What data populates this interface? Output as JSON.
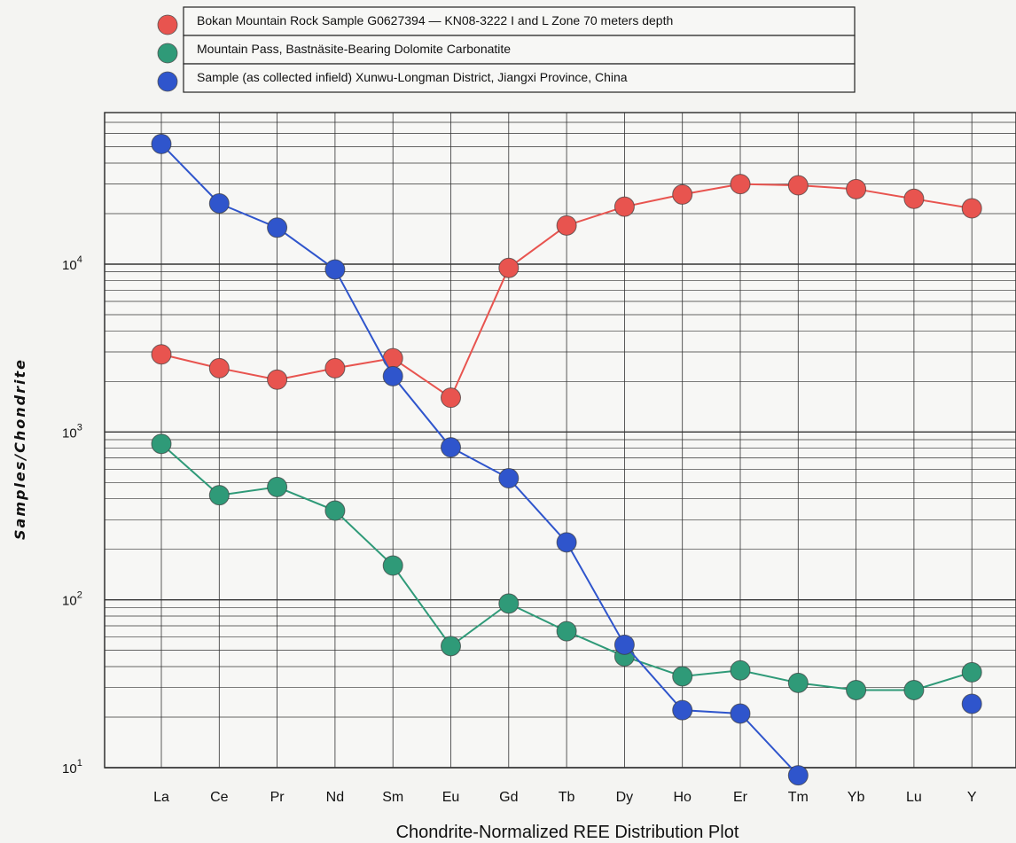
{
  "chart_data": {
    "type": "line",
    "xlabel": "Chondrite-Normalized REE Distribution Plot",
    "ylabel": "Samples/Chondrite",
    "yscale": "log",
    "ylim": [
      10,
      80000
    ],
    "y_tick_labels": [
      {
        "value": 10,
        "base": "10",
        "exp": "1"
      },
      {
        "value": 100,
        "base": "10",
        "exp": "2"
      },
      {
        "value": 1000,
        "base": "10",
        "exp": "3"
      },
      {
        "value": 10000,
        "base": "10",
        "exp": "4"
      }
    ],
    "grid": true,
    "legend_placement": "top",
    "categories": [
      "La",
      "Ce",
      "Pr",
      "Nd",
      "Sm",
      "Eu",
      "Gd",
      "Tb",
      "Dy",
      "Ho",
      "Er",
      "Tm",
      "Yb",
      "Lu",
      "Y"
    ],
    "series": [
      {
        "name": "Bokan Mountain Rock Sample G0627394 — KN08-3222 I and L Zone 70 meters depth",
        "color": "#e8544f",
        "values": [
          2900,
          2400,
          2050,
          2400,
          2750,
          1600,
          9500,
          17000,
          22000,
          26000,
          30000,
          29500,
          28000,
          24500,
          21500
        ]
      },
      {
        "name": "Mountain Pass, Bastnäsite-Bearing Dolomite Carbonatite",
        "color": "#2f9a78",
        "values": [
          850,
          420,
          470,
          340,
          160,
          53,
          95,
          65,
          46,
          35,
          38,
          32,
          29,
          29,
          37
        ]
      },
      {
        "name": "Sample (as collected infield) Xunwu-Longman District, Jiangxi Province, China",
        "color": "#2f55cc",
        "values": [
          52000,
          23000,
          16500,
          9300,
          2150,
          810,
          530,
          220,
          54,
          22,
          21,
          9,
          null,
          null,
          24
        ]
      }
    ]
  }
}
